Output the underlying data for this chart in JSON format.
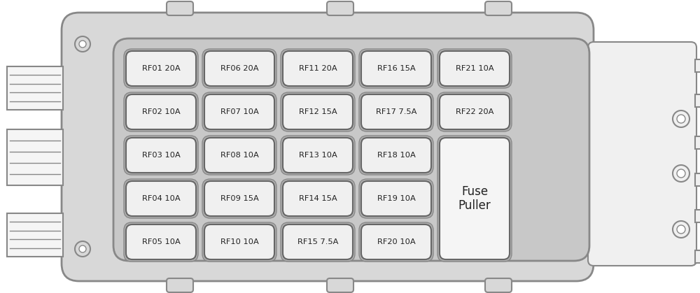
{
  "bg_color": "#ffffff",
  "outer_panel_color": "#d8d8d8",
  "inner_panel_color": "#c8c8c8",
  "fuse_outer_color": "#b8b8b8",
  "fuse_fill": "#f0f0f0",
  "fuse_stroke": "#666666",
  "fuse_puller_fill": "#f5f5f5",
  "text_color": "#222222",
  "line_color": "#888888",
  "fuses": [
    {
      "label": "RF01 20A",
      "col": 0,
      "row": 0
    },
    {
      "label": "RF02 10A",
      "col": 0,
      "row": 1
    },
    {
      "label": "RF03 10A",
      "col": 0,
      "row": 2
    },
    {
      "label": "RF04 10A",
      "col": 0,
      "row": 3
    },
    {
      "label": "RF05 10A",
      "col": 0,
      "row": 4
    },
    {
      "label": "RF06 20A",
      "col": 1,
      "row": 0
    },
    {
      "label": "RF07 10A",
      "col": 1,
      "row": 1
    },
    {
      "label": "RF08 10A",
      "col": 1,
      "row": 2
    },
    {
      "label": "RF09 15A",
      "col": 1,
      "row": 3
    },
    {
      "label": "RF10 10A",
      "col": 1,
      "row": 4
    },
    {
      "label": "RF11 20A",
      "col": 2,
      "row": 0
    },
    {
      "label": "RF12 15A",
      "col": 2,
      "row": 1
    },
    {
      "label": "RF13 10A",
      "col": 2,
      "row": 2
    },
    {
      "label": "RF14 15A",
      "col": 2,
      "row": 3
    },
    {
      "label": "RF15 7.5A",
      "col": 2,
      "row": 4
    },
    {
      "label": "RF16 15A",
      "col": 3,
      "row": 0
    },
    {
      "label": "RF17 7.5A",
      "col": 3,
      "row": 1
    },
    {
      "label": "RF18 10A",
      "col": 3,
      "row": 2
    },
    {
      "label": "RF19 10A",
      "col": 3,
      "row": 3
    },
    {
      "label": "RF20 10A",
      "col": 3,
      "row": 4
    },
    {
      "label": "RF21 10A",
      "col": 4,
      "row": 0
    },
    {
      "label": "RF22 20A",
      "col": 4,
      "row": 1
    }
  ],
  "fuse_puller_label": "Fuse\nPuller"
}
